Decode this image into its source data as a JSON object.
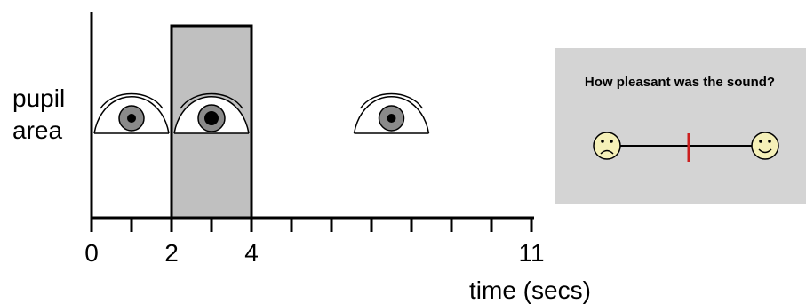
{
  "y_axis_label": [
    "pupil",
    "area"
  ],
  "x_axis": {
    "label": "time (secs)",
    "tick_labels": [
      {
        "value": 0,
        "text": "0"
      },
      {
        "value": 2,
        "text": "2"
      },
      {
        "value": 4,
        "text": "4"
      },
      {
        "value": 11,
        "text": "11"
      }
    ],
    "range": [
      0,
      11
    ],
    "tick_count": 12
  },
  "stimulus_interval": {
    "start": 2,
    "end": 4,
    "color": "#c0c0c0"
  },
  "eyes": [
    {
      "name": "baseline",
      "time": 1,
      "pupil": "small"
    },
    {
      "name": "stimulus",
      "time": 3,
      "pupil": "large"
    },
    {
      "name": "post",
      "time": 7.5,
      "pupil": "small"
    }
  ],
  "rating_panel": {
    "question": "How pleasant was the sound?",
    "left_face": "sad-face-icon",
    "right_face": "happy-face-icon",
    "marker_position": 0.5,
    "panel_color": "#d4d4d4",
    "marker_color": "#cc1f1f",
    "face_color": "#f5f0b8"
  }
}
